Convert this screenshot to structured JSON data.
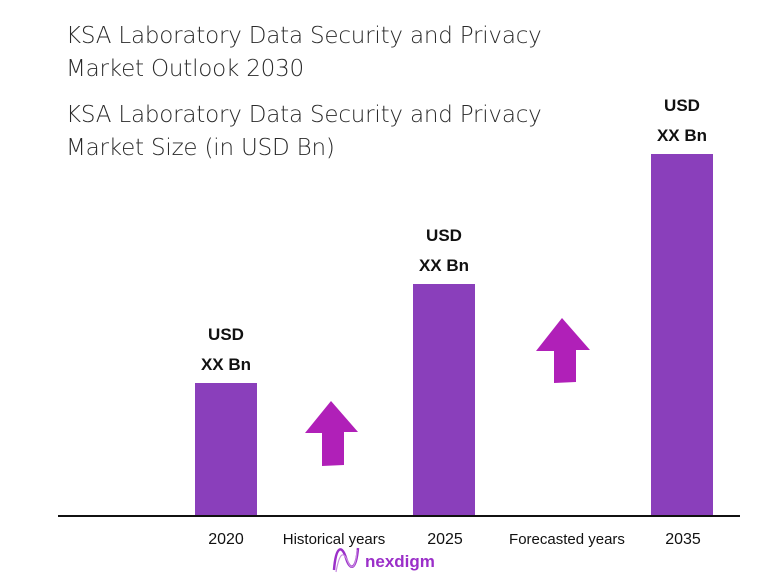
{
  "title": "KSA Laboratory Data Security and Privacy Market Outlook 2030",
  "subtitle": "KSA Laboratory Data Security and Privacy Market Size (in USD Bn)",
  "chart_data": {
    "type": "bar",
    "title": "KSA Laboratory Data Security and Privacy Market Outlook 2030",
    "subtitle": "KSA Laboratory Data Security and Privacy Market Size (in USD Bn)",
    "categories": [
      "2020",
      "2025",
      "2035"
    ],
    "values": [
      null,
      null,
      null
    ],
    "data_labels": [
      [
        "USD",
        "XX Bn"
      ],
      [
        "USD",
        "XX Bn"
      ],
      [
        "USD",
        "XX Bn"
      ]
    ],
    "period_labels": [
      "Historical years",
      "Forecasted years"
    ],
    "grid": false,
    "legend": "none",
    "bar_color": "#8a3fbb",
    "arrow_color": "#b020b8",
    "trend": "increasing"
  },
  "brand": {
    "name": "nexdigm",
    "color": "#9b2fc9"
  }
}
